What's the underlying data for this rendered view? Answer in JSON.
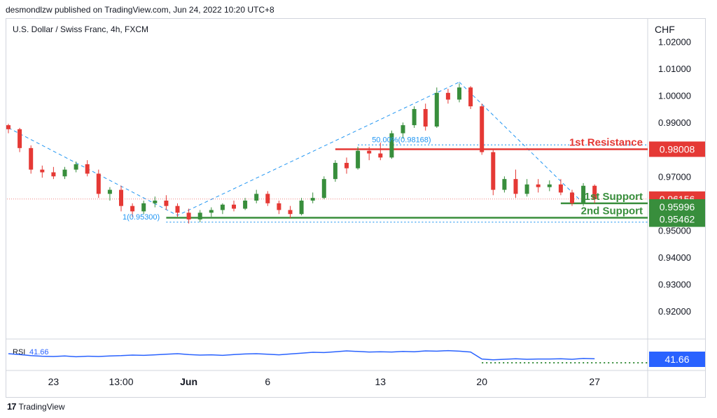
{
  "header": {
    "published": "desmondlzw published on TradingView.com, Jun 24, 2022 10:20 UTC+8"
  },
  "footer": {
    "brand_logo": "17",
    "brand": "TradingView"
  },
  "chart_data": {
    "type": "candlestick",
    "title": "U.S. Dollar / Swiss Franc, 4h, FXCM",
    "currency": "CHF",
    "ylim": [
      0.9135,
      1.0225
    ],
    "yticks": [
      "1.02000",
      "1.01000",
      "1.00000",
      "0.99000",
      "0.98000",
      "0.97000",
      "0.96000",
      "0.95000",
      "0.94000",
      "0.93000",
      "0.92000"
    ],
    "ytick_values": [
      1.02,
      1.01,
      1.0,
      0.99,
      0.98,
      0.97,
      0.96,
      0.95,
      0.94,
      0.93,
      0.92
    ],
    "xticks": [
      "23",
      "13:00",
      "Jun",
      "6",
      "13",
      "20",
      "27"
    ],
    "xtick_pos": [
      4,
      10,
      16,
      23,
      33,
      42,
      52
    ],
    "colors": {
      "up": "#388e3c",
      "down": "#e53935",
      "trend": "#2196f3",
      "rsi": "#2962ff"
    },
    "levels": [
      {
        "name": "1st Resistance",
        "value": 0.98008,
        "color": "#e53935"
      },
      {
        "name": "1st Support",
        "value": 0.96,
        "color": "#388e3c"
      },
      {
        "name": "2nd Support",
        "value": 0.95462,
        "color": "#388e3c"
      }
    ],
    "level_tags": [
      {
        "text": "0.98008",
        "value": 0.98008,
        "color": "#e53935"
      },
      {
        "text": "0.96156",
        "value": 0.96156,
        "color": "#e53935"
      },
      {
        "text": "0.95996",
        "value": 0.95996,
        "color": "#388e3c"
      },
      {
        "text": "0.95462",
        "value": 0.95462,
        "color": "#388e3c"
      }
    ],
    "fib": [
      {
        "label": "50.00%(0.98168)",
        "value": 0.98168
      },
      {
        "label": "1(0.95300)",
        "value": 0.953
      }
    ],
    "candles": [
      [
        0.989,
        0.9895,
        0.986,
        0.9875
      ],
      [
        0.9875,
        0.988,
        0.979,
        0.9805
      ],
      [
        0.9805,
        0.9815,
        0.971,
        0.9725
      ],
      [
        0.9725,
        0.974,
        0.9695,
        0.9715
      ],
      [
        0.9715,
        0.9735,
        0.969,
        0.97
      ],
      [
        0.97,
        0.9735,
        0.969,
        0.9725
      ],
      [
        0.9725,
        0.9755,
        0.9715,
        0.9745
      ],
      [
        0.9745,
        0.976,
        0.97,
        0.971
      ],
      [
        0.971,
        0.9725,
        0.962,
        0.9635
      ],
      [
        0.9635,
        0.966,
        0.961,
        0.965
      ],
      [
        0.965,
        0.9665,
        0.957,
        0.959
      ],
      [
        0.959,
        0.96,
        0.955,
        0.957
      ],
      [
        0.957,
        0.961,
        0.956,
        0.96
      ],
      [
        0.96,
        0.9625,
        0.9585,
        0.961
      ],
      [
        0.961,
        0.963,
        0.9575,
        0.959
      ],
      [
        0.959,
        0.96,
        0.955,
        0.9565
      ],
      [
        0.9565,
        0.958,
        0.9525,
        0.954
      ],
      [
        0.954,
        0.9575,
        0.953,
        0.9565
      ],
      [
        0.9565,
        0.9585,
        0.955,
        0.9575
      ],
      [
        0.9575,
        0.96,
        0.956,
        0.9595
      ],
      [
        0.9595,
        0.961,
        0.957,
        0.958
      ],
      [
        0.958,
        0.962,
        0.9575,
        0.961
      ],
      [
        0.961,
        0.965,
        0.96,
        0.9635
      ],
      [
        0.9635,
        0.9645,
        0.959,
        0.96
      ],
      [
        0.96,
        0.961,
        0.956,
        0.9575
      ],
      [
        0.9575,
        0.959,
        0.9545,
        0.956
      ],
      [
        0.956,
        0.962,
        0.9555,
        0.961
      ],
      [
        0.961,
        0.964,
        0.96,
        0.962
      ],
      [
        0.962,
        0.97,
        0.9615,
        0.969
      ],
      [
        0.969,
        0.976,
        0.968,
        0.975
      ],
      [
        0.975,
        0.977,
        0.971,
        0.973
      ],
      [
        0.973,
        0.981,
        0.9725,
        0.9795
      ],
      [
        0.9795,
        0.981,
        0.976,
        0.9785
      ],
      [
        0.9785,
        0.9825,
        0.976,
        0.977
      ],
      [
        0.977,
        0.987,
        0.9765,
        0.986
      ],
      [
        0.986,
        0.99,
        0.984,
        0.989
      ],
      [
        0.989,
        0.996,
        0.988,
        0.995
      ],
      [
        0.995,
        0.997,
        0.987,
        0.9885
      ],
      [
        0.9885,
        1.003,
        0.988,
        1.001
      ],
      [
        1.001,
        1.0025,
        0.997,
        0.9985
      ],
      [
        0.9985,
        1.0045,
        0.9975,
        1.003
      ],
      [
        1.003,
        1.0035,
        0.995,
        0.996
      ],
      [
        0.996,
        0.997,
        0.978,
        0.979
      ],
      [
        0.979,
        0.98,
        0.963,
        0.965
      ],
      [
        0.965,
        0.97,
        0.964,
        0.969
      ],
      [
        0.969,
        0.9725,
        0.962,
        0.9635
      ],
      [
        0.9635,
        0.969,
        0.9625,
        0.967
      ],
      [
        0.967,
        0.969,
        0.964,
        0.966
      ],
      [
        0.966,
        0.9685,
        0.9645,
        0.967
      ],
      [
        0.967,
        0.969,
        0.963,
        0.964
      ],
      [
        0.964,
        0.965,
        0.959,
        0.96
      ],
      [
        0.96,
        0.9675,
        0.959,
        0.9665
      ],
      [
        0.9665,
        0.967,
        0.96,
        0.9615
      ]
    ],
    "rsi": {
      "label": "RSI",
      "value": "41.66",
      "values": [
        55,
        52,
        48,
        46,
        45,
        47,
        44,
        46,
        45,
        47,
        48,
        50,
        49,
        51,
        53,
        55,
        52,
        50,
        51,
        49,
        52,
        54,
        55,
        53,
        51,
        54,
        57,
        60,
        59,
        62,
        65,
        63,
        61,
        62,
        61,
        63,
        62,
        65,
        64,
        66,
        64,
        61,
        36,
        33,
        35,
        37,
        35,
        36,
        36,
        37,
        35,
        38,
        37
      ],
      "ylim": [
        0,
        100
      ]
    }
  }
}
